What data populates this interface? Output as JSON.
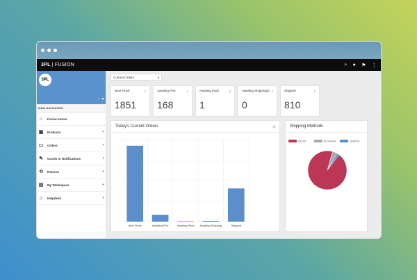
{
  "window": {
    "dots": 3
  },
  "topbar": {
    "brand_prefix": "3PL",
    "brand_suffix": "FUSION"
  },
  "sidebar": {
    "logo_text": "3PL",
    "nav_title": "MAIN NAVIGATION",
    "items": [
      {
        "label": "Fusion Home",
        "icon": "home-icon"
      },
      {
        "label": "Products",
        "icon": "box-icon"
      },
      {
        "label": "Orders",
        "icon": "folder-icon"
      },
      {
        "label": "Goods In Notifications",
        "icon": "pencil-icon"
      },
      {
        "label": "Returns",
        "icon": "return-icon"
      },
      {
        "label": "My Workspace",
        "icon": "workspace-icon"
      },
      {
        "label": "Helpdesk",
        "icon": "user-help-icon"
      }
    ]
  },
  "main": {
    "select_label": "Current Orders",
    "stats": [
      {
        "label": "Next Flush",
        "value": "1851"
      },
      {
        "label": "Awaiting Pick",
        "value": "168"
      },
      {
        "label": "Awaiting Pack",
        "value": "1"
      },
      {
        "label": "Awaiting Shipping(i)",
        "value": "0"
      },
      {
        "label": "Shipped",
        "value": "810"
      }
    ],
    "orders_title": "Today's Current Orders",
    "shipping_title": "Shipping Methods"
  },
  "chart_data": [
    {
      "type": "bar",
      "title": "Today's Current Orders",
      "categories": [
        "Next Flush",
        "Awaiting Pick",
        "Awaiting Pack",
        "Awaiting Shipping",
        "Shipped"
      ],
      "values": [
        1851,
        168,
        1,
        0,
        810
      ],
      "ylim": [
        0,
        2000
      ],
      "colors": [
        "#5b8fcb",
        "#5b8fcb",
        "#f1b14a",
        "#5b8fcb",
        "#5b8fcb"
      ],
      "grid": true
    },
    {
      "type": "pie",
      "title": "Shipping Methods",
      "legend": [
        {
          "name": "DX/OTL",
          "color": "#bc3655"
        },
        {
          "name": "ALTOGRAL",
          "color": "#aaaaaa"
        },
        {
          "name": "UKMYPD",
          "color": "#5b8fcb"
        }
      ],
      "values": [
        0.94,
        0.04,
        0.02
      ]
    }
  ]
}
